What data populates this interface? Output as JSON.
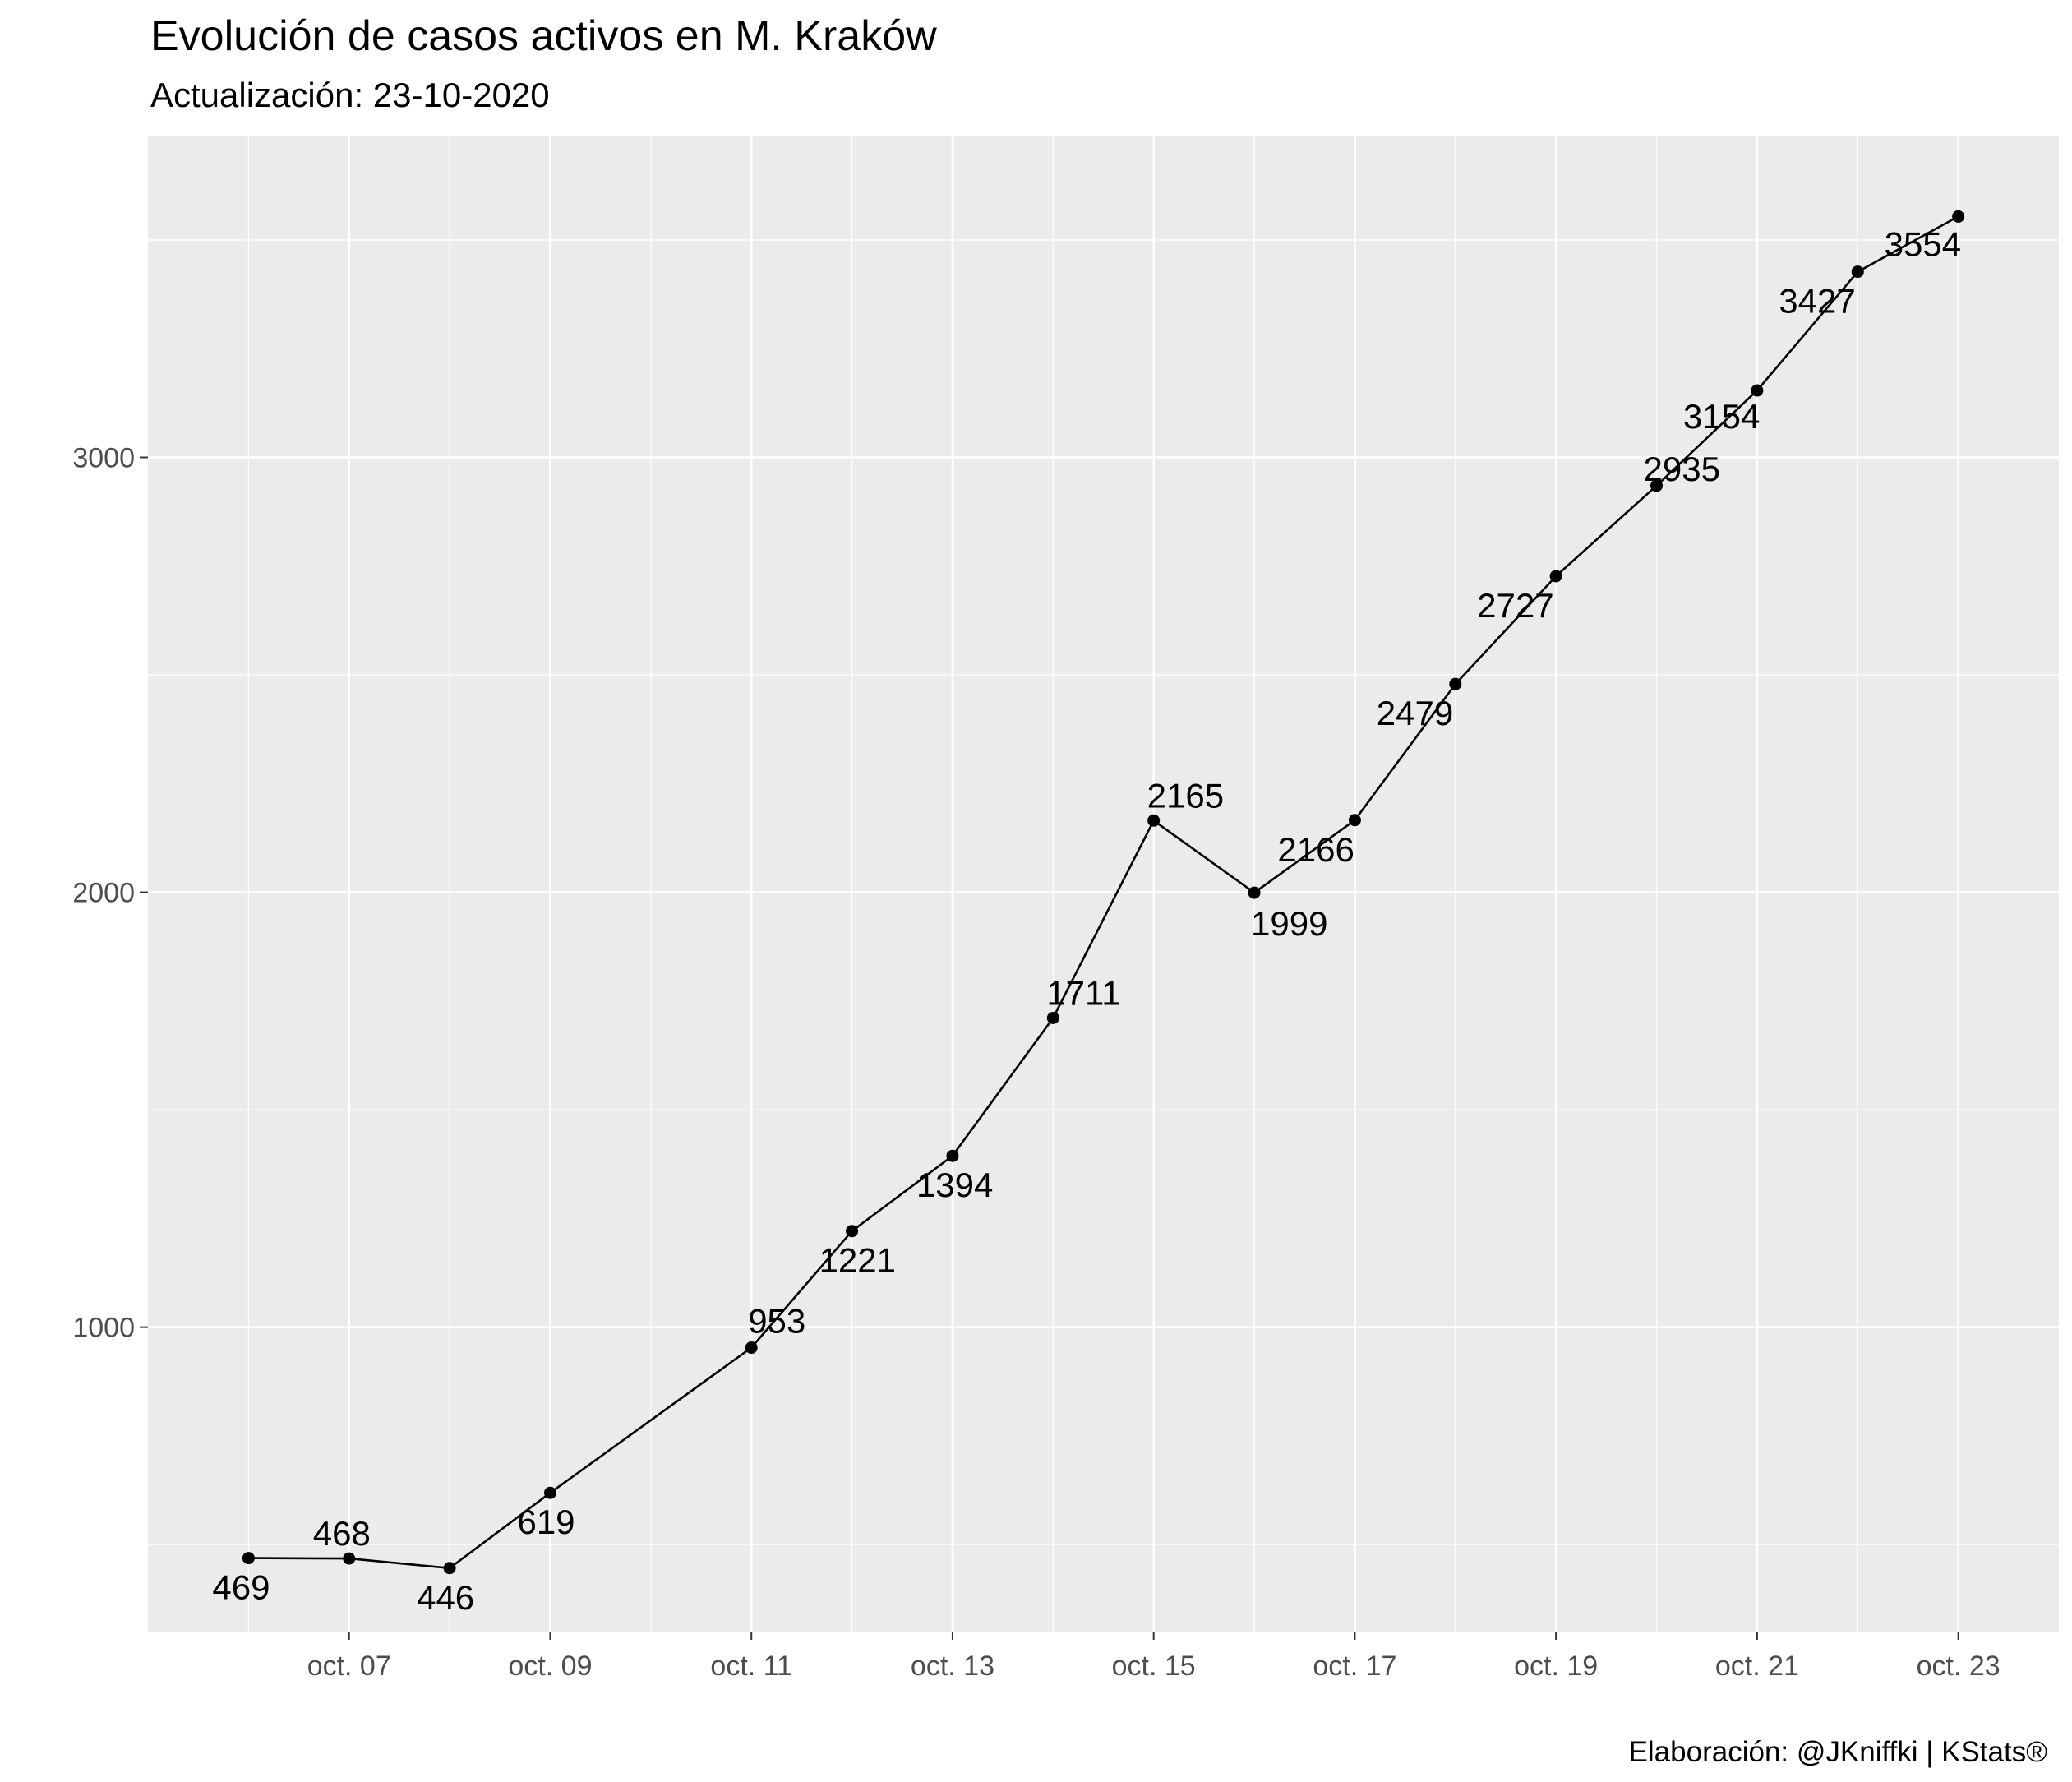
{
  "chart_data": {
    "type": "line",
    "title": "Evolución de casos activos en M. Kraków",
    "subtitle": "Actualización: 23-10-2020",
    "caption": "Elaboración: @JKniffki | KStats®",
    "xlabel": "",
    "ylabel": "",
    "x": [
      "2020-10-06",
      "2020-10-07",
      "2020-10-08",
      "2020-10-09",
      "2020-10-11",
      "2020-10-12",
      "2020-10-13",
      "2020-10-14",
      "2020-10-15",
      "2020-10-16",
      "2020-10-17",
      "2020-10-18",
      "2020-10-19",
      "2020-10-20",
      "2020-10-21",
      "2020-10-22",
      "2020-10-23"
    ],
    "values": [
      469,
      468,
      446,
      619,
      953,
      1221,
      1394,
      1711,
      2165,
      1999,
      2166,
      2479,
      2727,
      2935,
      3154,
      3427,
      3554
    ],
    "data_labels": [
      "469",
      "468",
      "446",
      "619",
      "953",
      "1221",
      "1394",
      "1711",
      "2165",
      "1999",
      "2166",
      "2479",
      "2727",
      "2935",
      "3154",
      "3427",
      "3554"
    ],
    "x_ticks": [
      {
        "date": "2020-10-07",
        "label": "oct. 07"
      },
      {
        "date": "2020-10-09",
        "label": "oct. 09"
      },
      {
        "date": "2020-10-11",
        "label": "oct. 11"
      },
      {
        "date": "2020-10-13",
        "label": "oct. 13"
      },
      {
        "date": "2020-10-15",
        "label": "oct. 15"
      },
      {
        "date": "2020-10-17",
        "label": "oct. 17"
      },
      {
        "date": "2020-10-19",
        "label": "oct. 19"
      },
      {
        "date": "2020-10-21",
        "label": "oct. 21"
      },
      {
        "date": "2020-10-23",
        "label": "oct. 23"
      }
    ],
    "y_ticks": [
      1000,
      2000,
      3000
    ],
    "y_tick_labels": [
      "1000",
      "2000",
      "3000"
    ],
    "xlim": [
      "2020-10-05",
      "2020-10-24"
    ],
    "ylim": [
      300,
      3740
    ],
    "grid": true,
    "legend": "none",
    "colors": {
      "panel": "#ebebeb",
      "grid": "#ffffff",
      "line": "#000000",
      "point": "#000000",
      "tick_text": "#4d4d4d"
    }
  }
}
